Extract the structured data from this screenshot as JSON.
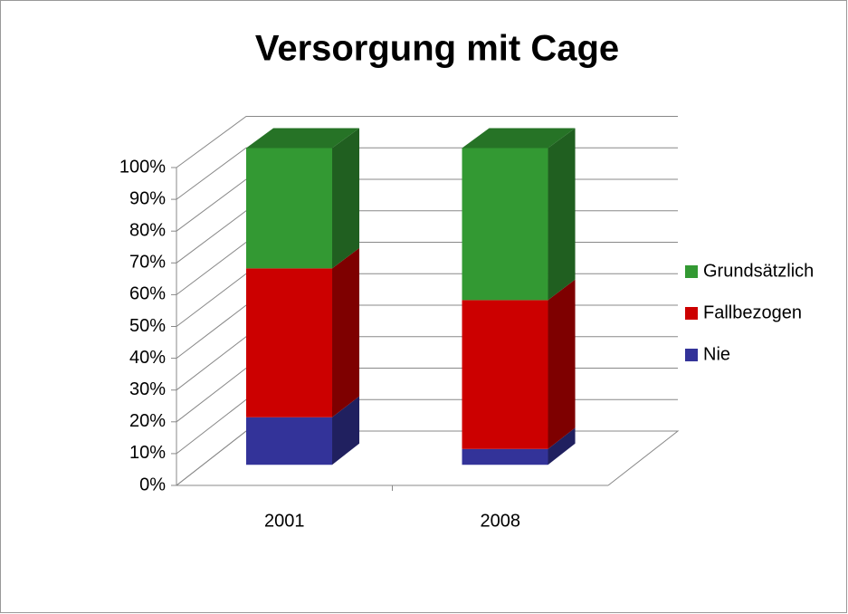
{
  "chart_data": {
    "type": "bar3d_stacked",
    "title": "Versorgung mit Cage",
    "categories": [
      "2001",
      "2008"
    ],
    "series": [
      {
        "name": "Nie",
        "color": "#333399",
        "values": [
          15,
          5
        ]
      },
      {
        "name": "Fallbezogen",
        "color": "#cc0000",
        "values": [
          47,
          47
        ]
      },
      {
        "name": "Grundsätzlich",
        "color": "#339933",
        "values": [
          38,
          48
        ]
      }
    ],
    "ylim": [
      0,
      100
    ],
    "yticks": [
      {
        "value": 0,
        "label": "0%"
      },
      {
        "value": 10,
        "label": "10%"
      },
      {
        "value": 20,
        "label": "20%"
      },
      {
        "value": 30,
        "label": "30%"
      },
      {
        "value": 40,
        "label": "40%"
      },
      {
        "value": 50,
        "label": "50%"
      },
      {
        "value": 60,
        "label": "60%"
      },
      {
        "value": 70,
        "label": "70%"
      },
      {
        "value": 80,
        "label": "80%"
      },
      {
        "value": 90,
        "label": "90%"
      },
      {
        "value": 100,
        "label": "100%"
      }
    ],
    "grid": true,
    "legend": "right"
  }
}
